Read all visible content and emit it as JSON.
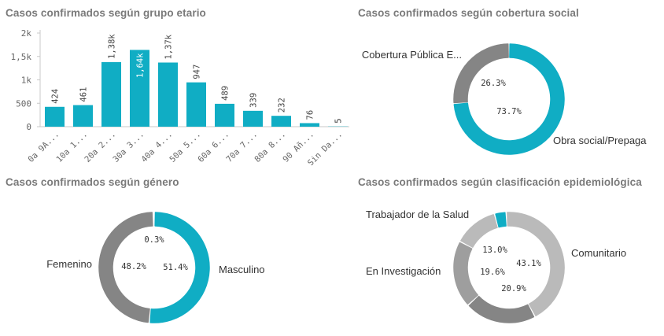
{
  "colors": {
    "accent": "#10adc4",
    "gray_dark": "#858585",
    "gray_mid": "#9e9e9e",
    "gray_light": "#bababa",
    "axis": "#c8c8c8",
    "title": "#7a7a7a"
  },
  "panels": {
    "age": {
      "title": "Casos confirmados según grupo etario"
    },
    "coverage": {
      "title": "Casos confirmados según cobertura social"
    },
    "gender": {
      "title": "Casos confirmados según género"
    },
    "epi": {
      "title": "Casos confirmados según clasificación epidemiológica"
    }
  },
  "chart_data": [
    {
      "type": "bar",
      "title": "Casos confirmados según grupo etario",
      "xlabel": "",
      "ylabel": "",
      "ylim": [
        0,
        2000
      ],
      "yticks": [
        "0",
        "500",
        "1k",
        "1,5k",
        "2k"
      ],
      "ytick_values": [
        0,
        500,
        1000,
        1500,
        2000
      ],
      "grid": false,
      "categories": [
        "0a 9A...",
        "10a 1...",
        "20a 2...",
        "30a 3...",
        "40a 4...",
        "50a 5...",
        "60a 6...",
        "70a 7...",
        "80a 8...",
        "90 Añ...",
        "Sin Da..."
      ],
      "values": [
        424,
        461,
        1380,
        1640,
        1370,
        947,
        489,
        339,
        232,
        76,
        5
      ],
      "value_labels": [
        "424",
        "461",
        "1,38k",
        "1,64k",
        "1,37k",
        "947",
        "489",
        "339",
        "232",
        "76",
        "5"
      ]
    },
    {
      "type": "pie",
      "donut": true,
      "title": "Casos confirmados según cobertura social",
      "labels": [
        "Obra social/Prepaga",
        "Cobertura Pública E..."
      ],
      "values": [
        73.7,
        26.3
      ],
      "value_labels": [
        "73.7%",
        "26.3%"
      ],
      "colors": [
        "#10adc4",
        "#858585"
      ]
    },
    {
      "type": "pie",
      "donut": true,
      "title": "Casos confirmados según género",
      "labels": [
        "Masculino",
        "Femenino",
        ""
      ],
      "values": [
        51.4,
        48.2,
        0.3
      ],
      "value_labels": [
        "51.4%",
        "48.2%",
        "0.3%"
      ],
      "colors": [
        "#10adc4",
        "#858585",
        "#bababa"
      ]
    },
    {
      "type": "pie",
      "donut": true,
      "title": "Casos confirmados según clasificación epidemiológica",
      "labels": [
        "Comunitario",
        "",
        "En Investigación",
        "",
        "Trabajador de la Salud"
      ],
      "values": [
        43.1,
        20.9,
        19.6,
        13.0,
        3.4
      ],
      "value_labels": [
        "43.1%",
        "20.9%",
        "19.6%",
        "13.0%",
        ""
      ],
      "colors": [
        "#bababa",
        "#858585",
        "#9e9e9e",
        "#bababa",
        "#10adc4"
      ]
    }
  ]
}
